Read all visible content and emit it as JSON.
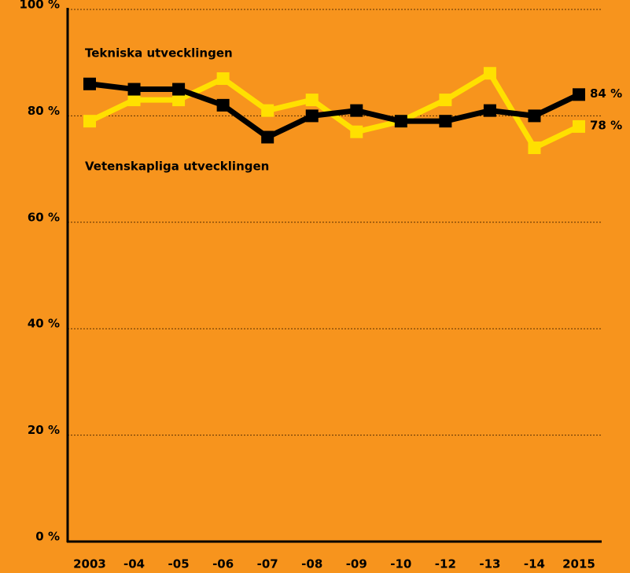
{
  "chart_data": {
    "type": "line",
    "categories": [
      "2003",
      "-04",
      "-05",
      "-06",
      "-07",
      "-08",
      "-09",
      "-10",
      "-12",
      "-13",
      "-14",
      "2015"
    ],
    "series": [
      {
        "name": "Tekniska utvecklingen",
        "color": "#000000",
        "values": [
          86,
          85,
          85,
          82,
          76,
          80,
          81,
          79,
          79,
          81,
          80,
          84
        ],
        "value_labels": [
          null,
          null,
          null,
          null,
          null,
          null,
          null,
          null,
          null,
          null,
          null,
          "84 %"
        ]
      },
      {
        "name": "Vetenskapliga utvecklingen",
        "color": "#ffe000",
        "values": [
          79,
          83,
          83,
          87,
          81,
          83,
          77,
          79,
          83,
          88,
          74,
          78
        ],
        "value_labels": [
          null,
          null,
          null,
          null,
          null,
          null,
          null,
          null,
          null,
          null,
          null,
          "78 %"
        ]
      }
    ],
    "ylim": [
      0,
      100
    ],
    "yticks": [
      {
        "value": 0,
        "label": "0 %"
      },
      {
        "value": 20,
        "label": "20 %"
      },
      {
        "value": 40,
        "label": "40 %"
      },
      {
        "value": 60,
        "label": "60 %"
      },
      {
        "value": 80,
        "label": "80 %"
      },
      {
        "value": 100,
        "label": "100 %"
      }
    ],
    "grid": true,
    "background": "#f7941d"
  }
}
